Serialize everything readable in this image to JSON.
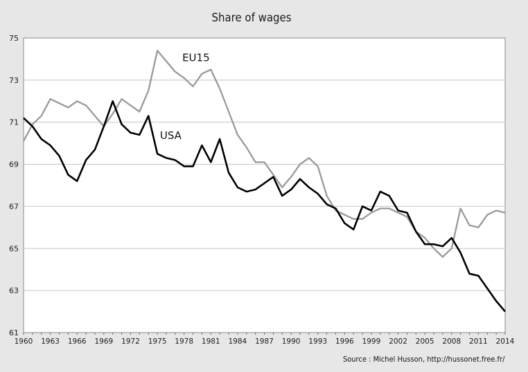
{
  "chart_data": {
    "type": "line",
    "title": "Share of wages",
    "xlabel": "",
    "ylabel": "",
    "source": "Source : Michel Husson, http://hussonet.free.fr/",
    "xlim": [
      1960,
      2014
    ],
    "ylim": [
      61,
      75
    ],
    "grid": true,
    "legend": "inline labels",
    "x_ticks": [
      1960,
      1963,
      1966,
      1969,
      1972,
      1975,
      1978,
      1981,
      1984,
      1987,
      1990,
      1993,
      1996,
      1999,
      2002,
      2005,
      2008,
      2011,
      2014
    ],
    "y_ticks": [
      61,
      63,
      65,
      67,
      69,
      71,
      73,
      75
    ],
    "x": [
      1960,
      1961,
      1962,
      1963,
      1964,
      1965,
      1966,
      1967,
      1968,
      1969,
      1970,
      1971,
      1972,
      1973,
      1974,
      1975,
      1976,
      1977,
      1978,
      1979,
      1980,
      1981,
      1982,
      1983,
      1984,
      1985,
      1986,
      1987,
      1988,
      1989,
      1990,
      1991,
      1992,
      1993,
      1994,
      1995,
      1996,
      1997,
      1998,
      1999,
      2000,
      2001,
      2002,
      2003,
      2004,
      2005,
      2006,
      2007,
      2008,
      2009,
      2010,
      2011,
      2012,
      2013,
      2014
    ],
    "series": [
      {
        "name": "EU15",
        "color": "#999999",
        "values": [
          70.1,
          70.9,
          71.3,
          72.1,
          71.9,
          71.7,
          72.0,
          71.8,
          71.3,
          70.8,
          71.4,
          72.1,
          71.8,
          71.5,
          72.5,
          74.4,
          73.9,
          73.4,
          73.1,
          72.7,
          73.3,
          73.5,
          72.6,
          71.5,
          70.4,
          69.8,
          69.1,
          69.1,
          68.5,
          67.9,
          68.4,
          69.0,
          69.3,
          68.9,
          67.5,
          66.8,
          66.6,
          66.4,
          66.4,
          66.7,
          66.9,
          66.9,
          66.7,
          66.5,
          65.8,
          65.5,
          65.0,
          64.6,
          65.0,
          66.9,
          66.1,
          66.0,
          66.6,
          66.8,
          66.7
        ]
      },
      {
        "name": "USA",
        "color": "#000000",
        "values": [
          71.2,
          70.8,
          70.2,
          69.9,
          69.4,
          68.5,
          68.2,
          69.2,
          69.7,
          70.8,
          72.0,
          70.9,
          70.5,
          70.4,
          71.3,
          69.5,
          69.3,
          69.2,
          68.9,
          68.9,
          69.9,
          69.1,
          70.2,
          68.6,
          67.9,
          67.7,
          67.8,
          68.1,
          68.4,
          67.5,
          67.8,
          68.3,
          67.9,
          67.6,
          67.1,
          66.9,
          66.2,
          65.9,
          67.0,
          66.8,
          67.7,
          67.5,
          66.8,
          66.7,
          65.8,
          65.2,
          65.2,
          65.1,
          65.5,
          64.8,
          63.8,
          63.7,
          63.1,
          62.5,
          62.0
        ]
      }
    ]
  }
}
